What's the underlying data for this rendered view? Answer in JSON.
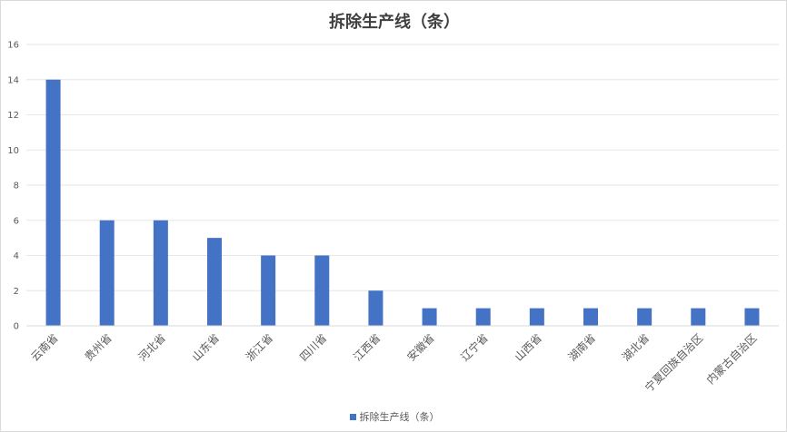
{
  "chart_data": {
    "type": "bar",
    "title": "拆除生产线（条）",
    "categories": [
      "云南省",
      "贵州省",
      "河北省",
      "山东省",
      "浙江省",
      "四川省",
      "江西省",
      "安徽省",
      "辽宁省",
      "山西省",
      "湖南省",
      "湖北省",
      "宁夏回族自治区",
      "内蒙古自治区"
    ],
    "series": [
      {
        "name": "拆除生产线（条）",
        "values": [
          14,
          6,
          6,
          5,
          4,
          4,
          2,
          1,
          1,
          1,
          1,
          1,
          1,
          1
        ],
        "color": "#4472C4"
      }
    ],
    "xlabel": "",
    "ylabel": "",
    "ylim": [
      0,
      16
    ],
    "yticks": [
      0,
      2,
      4,
      6,
      8,
      10,
      12,
      14,
      16
    ],
    "grid": true,
    "legend_position": "bottom"
  }
}
